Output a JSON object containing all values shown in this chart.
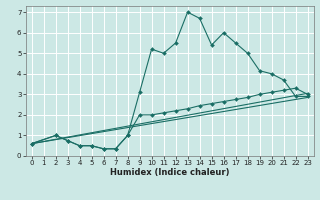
{
  "xlabel": "Humidex (Indice chaleur)",
  "bg_color": "#cce8e5",
  "grid_color": "#ffffff",
  "line_color": "#1a6e65",
  "xlim": [
    -0.5,
    23.5
  ],
  "ylim": [
    0,
    7.3
  ],
  "xticks": [
    0,
    1,
    2,
    3,
    4,
    5,
    6,
    7,
    8,
    9,
    10,
    11,
    12,
    13,
    14,
    15,
    16,
    17,
    18,
    19,
    20,
    21,
    22,
    23
  ],
  "yticks": [
    0,
    1,
    2,
    3,
    4,
    5,
    6,
    7
  ],
  "series1_x": [
    0,
    2,
    3,
    4,
    5,
    6,
    7,
    8,
    9,
    10,
    11,
    12,
    13,
    14,
    15,
    16,
    17,
    18,
    19,
    20,
    21,
    22,
    23
  ],
  "series1_y": [
    0.6,
    1.0,
    0.75,
    0.5,
    0.5,
    0.35,
    0.35,
    1.0,
    3.1,
    5.2,
    5.0,
    5.5,
    7.0,
    6.7,
    5.4,
    6.0,
    5.5,
    5.0,
    4.15,
    4.0,
    3.7,
    2.9,
    2.9
  ],
  "series2_x": [
    0,
    2,
    3,
    4,
    5,
    6,
    7,
    8,
    9,
    10,
    11,
    12,
    13,
    14,
    15,
    16,
    17,
    18,
    19,
    20,
    21,
    22,
    23
  ],
  "series2_y": [
    0.6,
    1.0,
    0.75,
    0.5,
    0.5,
    0.35,
    0.35,
    1.0,
    2.0,
    2.0,
    2.1,
    2.2,
    2.3,
    2.45,
    2.55,
    2.65,
    2.75,
    2.85,
    3.0,
    3.1,
    3.2,
    3.3,
    3.0
  ],
  "line3_x": [
    0,
    23
  ],
  "line3_y": [
    0.6,
    2.85
  ],
  "line4_x": [
    0,
    23
  ],
  "line4_y": [
    0.6,
    3.05
  ],
  "xlabel_fontsize": 6,
  "tick_fontsize": 5,
  "linewidth": 0.8,
  "markersize": 2.0
}
